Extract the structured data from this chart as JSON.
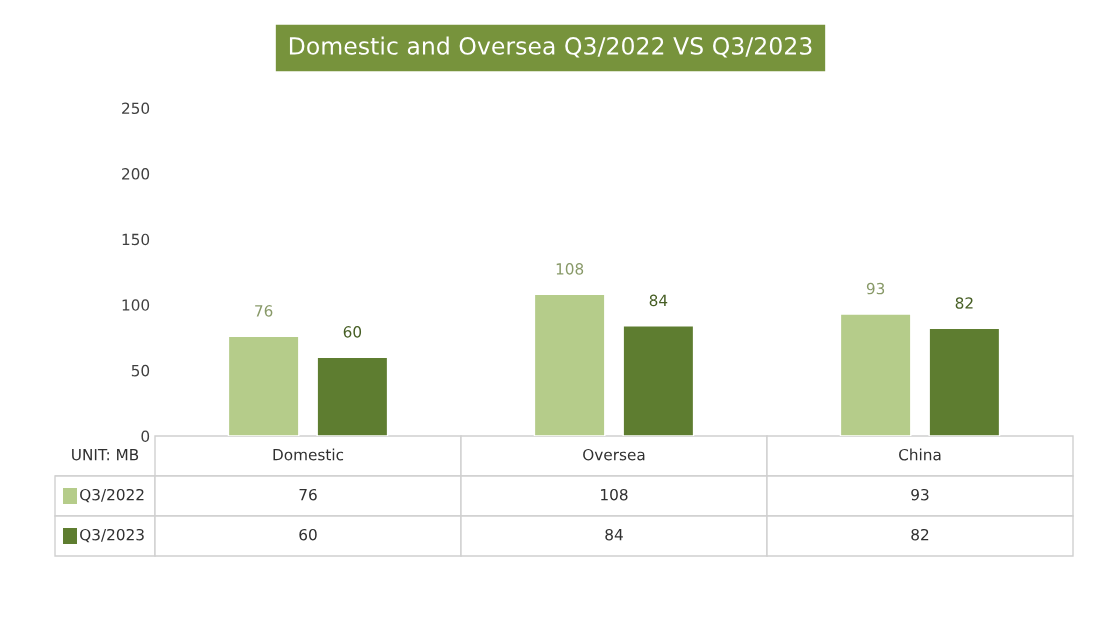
{
  "chart_data": {
    "type": "bar",
    "title": "Domestic and Oversea Q3/2022 VS Q3/2023",
    "categories": [
      "Domestic",
      "Oversea",
      "China"
    ],
    "series": [
      {
        "name": "Q3/2022",
        "color": "#b5cc8a",
        "values": [
          76,
          108,
          93
        ],
        "value_labels": [
          "76",
          "108",
          "93"
        ]
      },
      {
        "name": "Q3/2023",
        "color": "#5e7d30",
        "values": [
          60,
          84,
          82
        ],
        "value_labels": [
          "60",
          "84",
          "82"
        ]
      }
    ],
    "ylim": [
      0,
      250
    ],
    "yticks": [
      0,
      50,
      100,
      150,
      200,
      250
    ],
    "grid": false,
    "legend": "bottom",
    "tick_labels": "y",
    "data_labels": true,
    "annotations": [
      "UNIT: MB",
      "76",
      "108",
      "93",
      "60",
      "84",
      "82"
    ]
  }
}
